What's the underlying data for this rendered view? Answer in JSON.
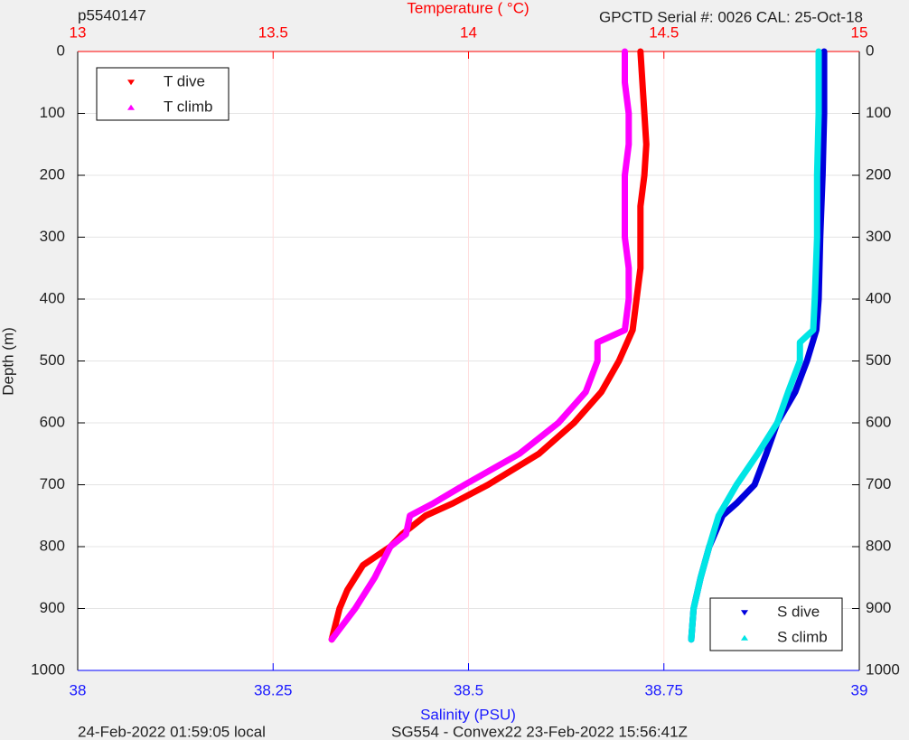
{
  "chart_data": {
    "type": "profile",
    "title_left": "p5540147",
    "title_right": "GPCTD Serial #: 0026 CAL: 25-Oct-18",
    "x2label": "Temperature (    °C)",
    "xlabel": "Salinity (PSU)",
    "ylabel": "Depth (m)",
    "footer_left": "24-Feb-2022 01:59:05 local",
    "footer_center": "SG554 - Convex22 23-Feb-2022 15:56:41Z",
    "xlim": [
      38,
      39
    ],
    "xticks": [
      38,
      38.25,
      38.5,
      38.75,
      39
    ],
    "x2lim": [
      13,
      15
    ],
    "x2ticks": [
      13,
      13.5,
      14,
      14.5,
      15
    ],
    "ylim": [
      1000,
      0
    ],
    "yticks": [
      0,
      100,
      200,
      300,
      400,
      500,
      600,
      700,
      800,
      900,
      1000
    ],
    "grid": true,
    "series": [
      {
        "name": "T dive",
        "color": "#ff0000",
        "axis": "x2",
        "marker": "down",
        "legend": "upper left",
        "x": [
          14.44,
          14.45,
          14.455,
          14.45,
          14.44,
          14.44,
          14.44,
          14.43,
          14.42,
          14.385,
          14.34,
          14.27,
          14.18,
          14.05,
          13.96,
          13.89,
          13.83,
          13.8,
          13.73,
          13.69,
          13.67,
          13.65
        ],
        "y": [
          0,
          100,
          150,
          200,
          250,
          300,
          350,
          400,
          450,
          500,
          550,
          600,
          650,
          700,
          730,
          750,
          780,
          800,
          830,
          870,
          900,
          950
        ]
      },
      {
        "name": "T climb",
        "color": "#ff00ff",
        "axis": "x2",
        "marker": "up",
        "legend": "upper left",
        "x": [
          14.4,
          14.4,
          14.41,
          14.41,
          14.4,
          14.4,
          14.4,
          14.41,
          14.41,
          14.4,
          14.33,
          14.33,
          14.3,
          14.23,
          14.13,
          13.99,
          13.91,
          13.85,
          13.84,
          13.8,
          13.76,
          13.71,
          13.65
        ],
        "y": [
          0,
          50,
          100,
          150,
          200,
          250,
          300,
          350,
          400,
          450,
          470,
          500,
          550,
          600,
          650,
          700,
          730,
          750,
          780,
          800,
          850,
          900,
          950
        ]
      },
      {
        "name": "S dive",
        "color": "#0000dd",
        "axis": "x",
        "marker": "down",
        "legend": "lower right",
        "x": [
          38.955,
          38.955,
          38.953,
          38.95,
          38.948,
          38.945,
          38.933,
          38.918,
          38.895,
          38.881,
          38.866,
          38.843,
          38.825,
          38.808,
          38.797,
          38.788,
          38.785
        ],
        "y": [
          0,
          100,
          200,
          300,
          400,
          450,
          500,
          550,
          600,
          650,
          700,
          730,
          750,
          800,
          850,
          900,
          950
        ]
      },
      {
        "name": "S climb",
        "color": "#00e5e5",
        "axis": "x",
        "marker": "up",
        "legend": "lower right",
        "x": [
          38.948,
          38.948,
          38.946,
          38.946,
          38.943,
          38.941,
          38.924,
          38.924,
          38.909,
          38.895,
          38.87,
          38.843,
          38.82,
          38.808,
          38.797,
          38.788,
          38.785
        ],
        "y": [
          0,
          100,
          200,
          300,
          400,
          450,
          470,
          500,
          550,
          600,
          650,
          700,
          750,
          800,
          850,
          900,
          950
        ]
      }
    ]
  }
}
